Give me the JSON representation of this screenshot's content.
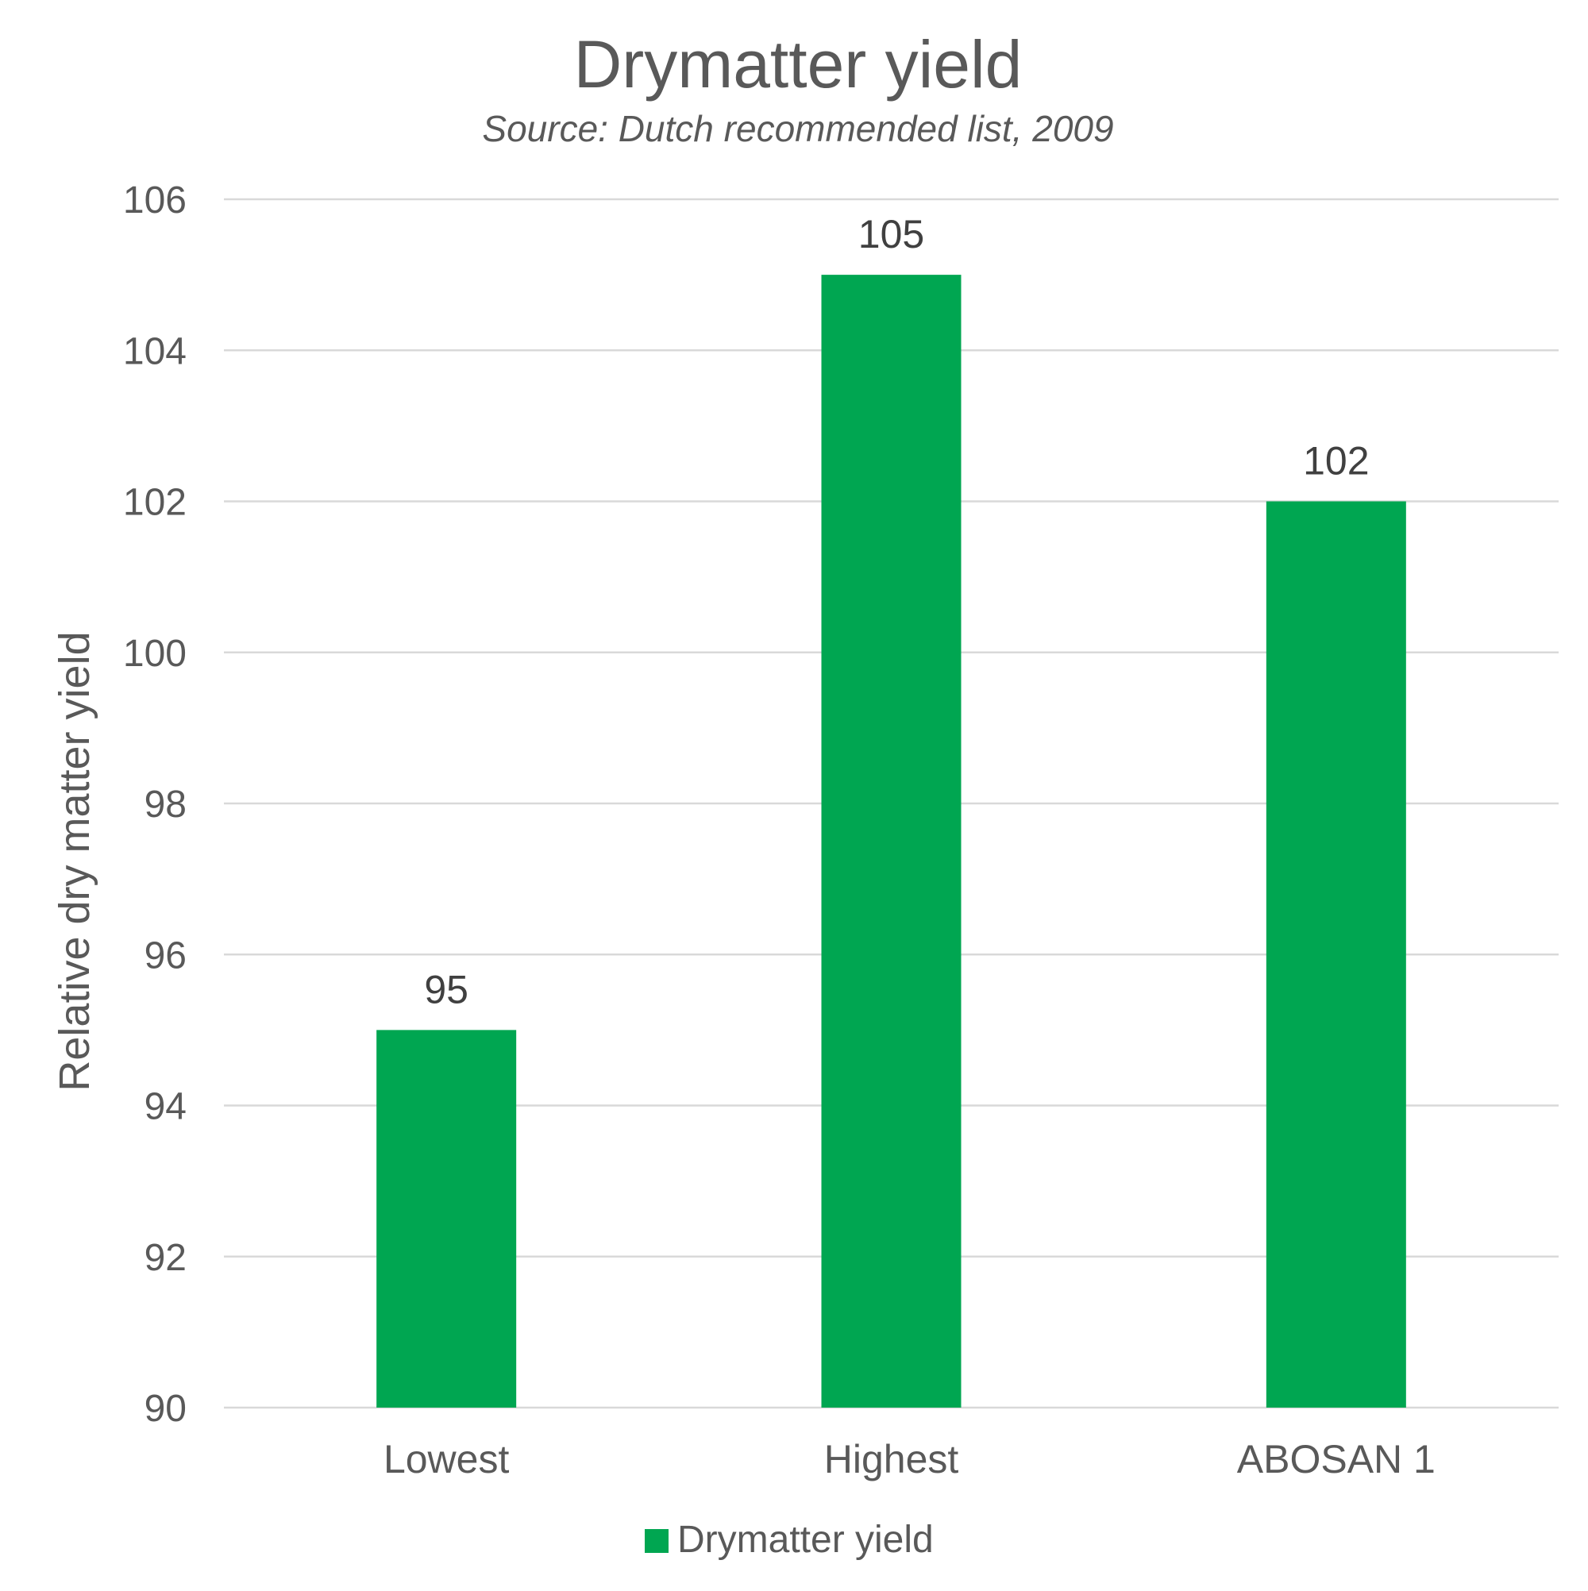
{
  "chart_data": {
    "type": "bar",
    "title": "Drymatter yield",
    "subtitle": "Source: Dutch recommended list, 2009",
    "ylabel": "Relative dry matter yield",
    "xlabel": "",
    "categories": [
      "Lowest",
      "Highest",
      "ABOSAN 1"
    ],
    "series": [
      {
        "name": "Drymatter yield",
        "values": [
          95,
          105,
          102
        ],
        "color": "#00A651"
      }
    ],
    "data_labels": [
      "95",
      "105",
      "102"
    ],
    "ylim": [
      90,
      106
    ],
    "yticks": [
      90,
      92,
      94,
      96,
      98,
      100,
      102,
      104,
      106
    ],
    "ytick_labels": [
      "90",
      "92",
      "94",
      "96",
      "98",
      "100",
      "102",
      "104",
      "106"
    ],
    "grid": true,
    "legend_position": "bottom"
  },
  "colors": {
    "text": "#595959",
    "data_label": "#404040",
    "gridline": "#D9D9D9",
    "background": "#FFFFFF"
  }
}
